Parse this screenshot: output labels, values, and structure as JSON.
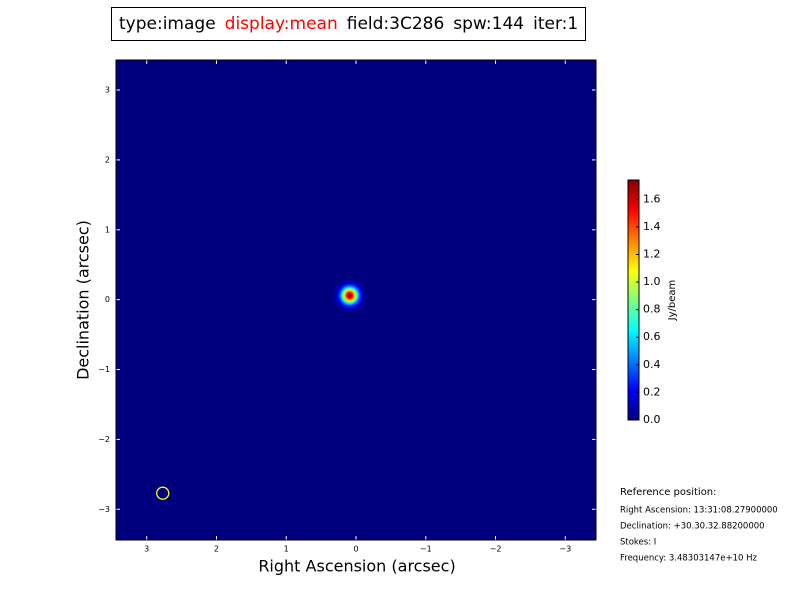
{
  "chart_data": {
    "type": "image",
    "title_parts": [
      {
        "text": "type:image",
        "color": "#000000"
      },
      {
        "text": "display:mean",
        "color": "#ff0000"
      },
      {
        "text": "field:3C286",
        "color": "#000000"
      },
      {
        "text": "spw:144",
        "color": "#000000"
      },
      {
        "text": "iter:1",
        "color": "#000000"
      }
    ],
    "xlabel": "Right Ascension (arcsec)",
    "ylabel": "Declination (arcsec)",
    "xlim": [
      3.44,
      -3.44
    ],
    "ylim": [
      -3.44,
      3.43
    ],
    "xticks": [
      3,
      2,
      1,
      0,
      {
        "value": -1,
        "label": "−1"
      },
      {
        "value": -2,
        "label": "−2"
      },
      {
        "value": -3,
        "label": "−3"
      }
    ],
    "yticks": [
      {
        "value": -3,
        "label": "−3"
      },
      {
        "value": -2,
        "label": "−2"
      },
      {
        "value": -1,
        "label": "−1"
      },
      0,
      1,
      2,
      3
    ],
    "background_color": "#00007f",
    "colormap": "jet",
    "source": {
      "x": 0.09,
      "y": 0.06,
      "peak": 1.72,
      "fwhm": 0.19
    },
    "markers": [
      {
        "x": 2.77,
        "y": -2.77,
        "color": "#ffff00"
      }
    ],
    "colorbar": {
      "label": "Jy/beam",
      "clim": [
        0,
        1.74
      ],
      "ticks": [
        {
          "value": 0,
          "label": "0.0"
        },
        0.2,
        0.4,
        0.6,
        0.8,
        {
          "value": 1,
          "label": "1.0"
        },
        1.2,
        1.4,
        1.6
      ]
    },
    "reference": {
      "title": "Reference position:",
      "lines": [
        "Right Ascension: 13:31:08.27900000",
        "Declination: +30.30.32.88200000",
        "Stokes: I",
        "Frequency: 3.48303147e+10 Hz"
      ]
    }
  }
}
